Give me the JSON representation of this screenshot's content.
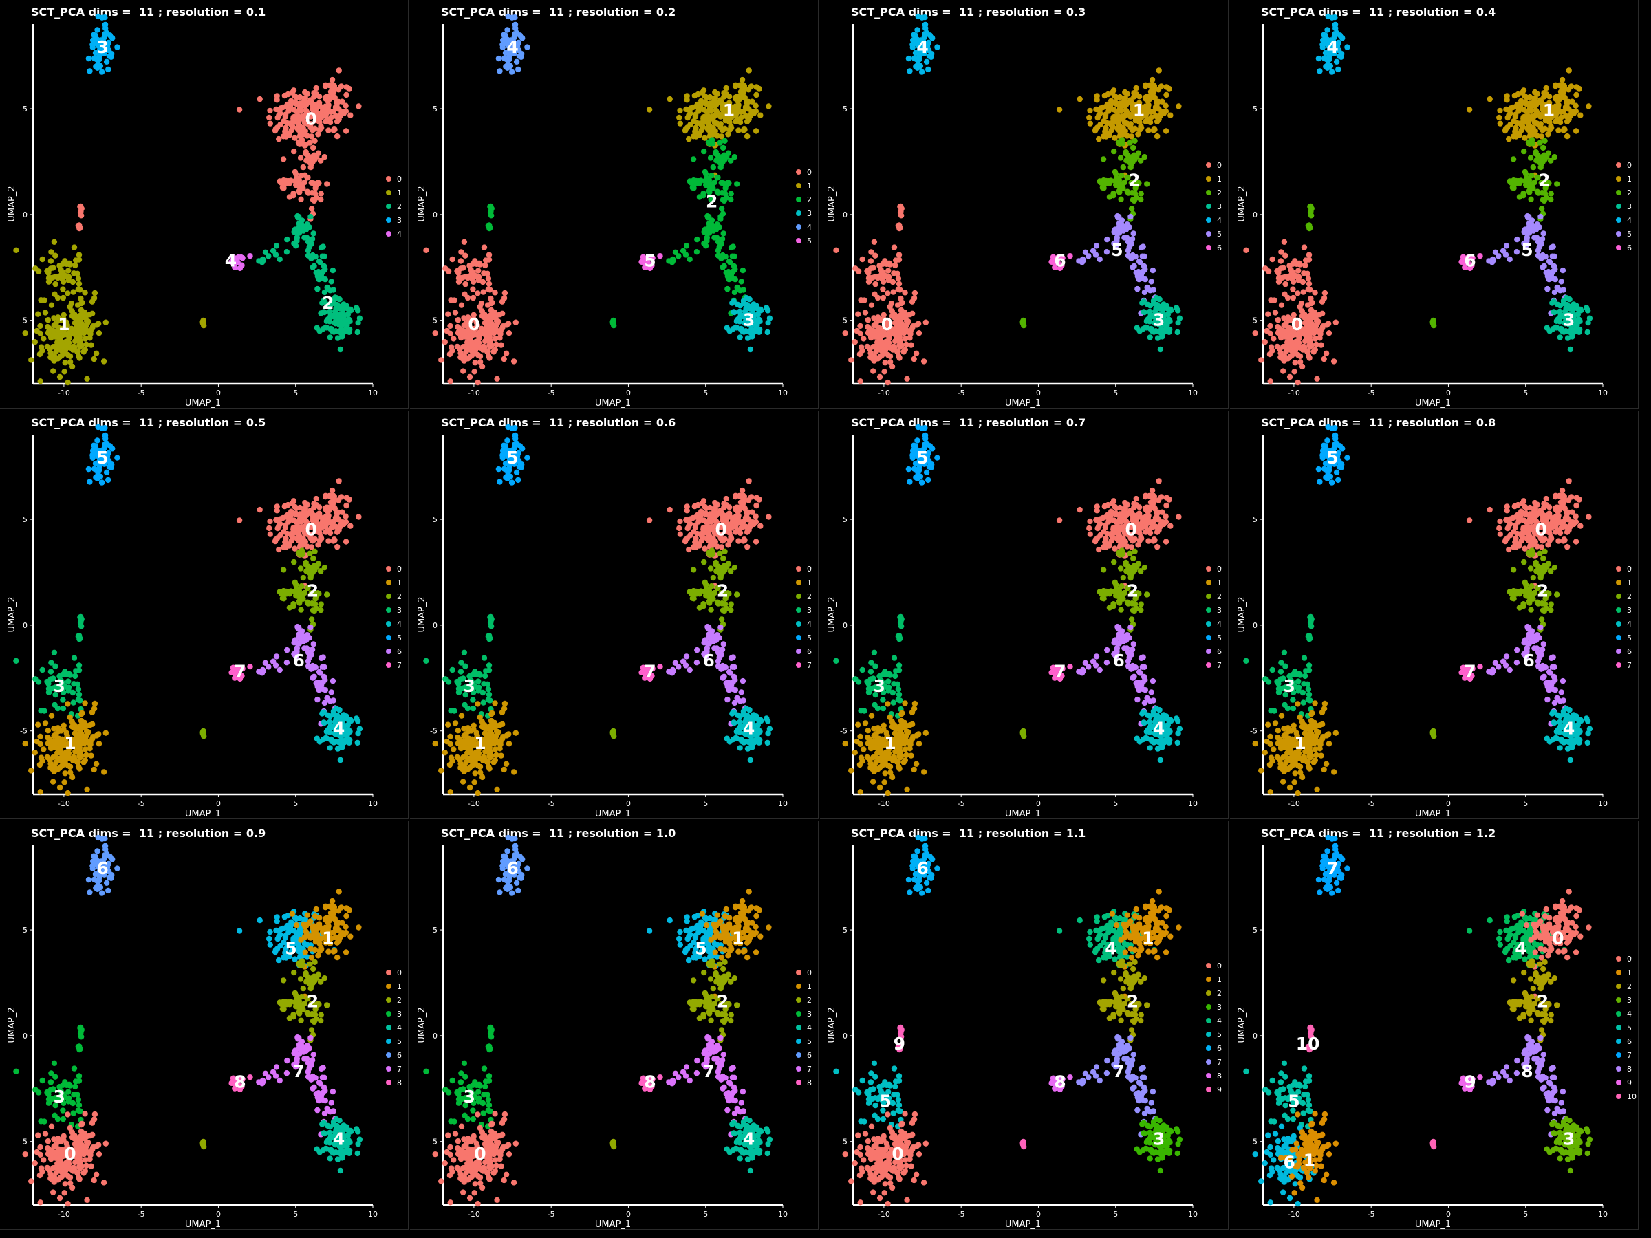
{
  "chart_data": [
    {
      "type": "scatter",
      "title": "SCT_PCA dims =  11 ; resolution = 0.1",
      "xlabel": "UMAP_1",
      "ylabel": "UMAP_2",
      "xlim": [
        -12,
        10
      ],
      "ylim": [
        -8,
        9
      ],
      "xticks": [
        -10,
        -5,
        0,
        5,
        10
      ],
      "yticks": [
        -5,
        0,
        5
      ],
      "legend": [
        "0",
        "1",
        "2",
        "3",
        "4"
      ],
      "colors": [
        "#F8766D",
        "#A3A500",
        "#00BF7D",
        "#00B0F6",
        "#E76BF3"
      ],
      "regions": {
        "up": 0,
        "mid": 0,
        "lowerleft": 1,
        "lowerleft_top": 1,
        "stalk": 0,
        "bottomright": 2,
        "path": 2,
        "small": 4,
        "top": 3,
        "tiny": 1
      },
      "labels": [
        {
          "text": "0",
          "x": 6,
          "y": 4.5
        },
        {
          "text": "1",
          "x": -10,
          "y": -5.2
        },
        {
          "text": "2",
          "x": 7.1,
          "y": -4.2
        },
        {
          "text": "3",
          "x": -7.5,
          "y": 7.9
        },
        {
          "text": "4",
          "x": 0.8,
          "y": -2.2
        }
      ]
    },
    {
      "type": "scatter",
      "title": "SCT_PCA dims =  11 ; resolution = 0.2",
      "xlabel": "UMAP_1",
      "ylabel": "UMAP_2",
      "xlim": [
        -12,
        10
      ],
      "ylim": [
        -8,
        9
      ],
      "xticks": [
        -10,
        -5,
        0,
        5,
        10
      ],
      "yticks": [
        -5,
        0,
        5
      ],
      "legend": [
        "0",
        "1",
        "2",
        "3",
        "4",
        "5"
      ],
      "colors": [
        "#F8766D",
        "#B79F00",
        "#00BA38",
        "#00BFC4",
        "#619CFF",
        "#F564E3"
      ],
      "regions": {
        "up": 1,
        "mid": 2,
        "lowerleft": 0,
        "lowerleft_top": 0,
        "stalk": 2,
        "bottomright": 3,
        "path": 2,
        "small": 5,
        "top": 4,
        "tiny": 2
      },
      "labels": [
        {
          "text": "1",
          "x": 6.5,
          "y": 4.9
        },
        {
          "text": "2",
          "x": 5.4,
          "y": 0.6
        },
        {
          "text": "0",
          "x": -10,
          "y": -5.2
        },
        {
          "text": "3",
          "x": 7.8,
          "y": -5
        },
        {
          "text": "4",
          "x": -7.5,
          "y": 7.9
        },
        {
          "text": "5",
          "x": 1.4,
          "y": -2.2
        }
      ]
    },
    {
      "type": "scatter",
      "title": "SCT_PCA dims =  11 ; resolution = 0.3",
      "xlabel": "UMAP_1",
      "ylabel": "UMAP_2",
      "xlim": [
        -12,
        10
      ],
      "ylim": [
        -8,
        9
      ],
      "xticks": [
        -10,
        -5,
        0,
        5,
        10
      ],
      "yticks": [
        -5,
        0,
        5
      ],
      "legend": [
        "0",
        "1",
        "2",
        "3",
        "4",
        "5",
        "6"
      ],
      "colors": [
        "#F8766D",
        "#C49A00",
        "#53B400",
        "#00C094",
        "#00B6EB",
        "#A58AFF",
        "#FB61D7"
      ],
      "regions": {
        "up": 1,
        "mid": 2,
        "lowerleft": 0,
        "lowerleft_top": 0,
        "stalk": 0,
        "bottomright": 3,
        "path": 5,
        "small": 6,
        "top": 4,
        "tiny": 2
      },
      "labels": [
        {
          "text": "1",
          "x": 6.5,
          "y": 4.9
        },
        {
          "text": "2",
          "x": 6.2,
          "y": 1.6
        },
        {
          "text": "5",
          "x": 5.1,
          "y": -1.7
        },
        {
          "text": "0",
          "x": -9.8,
          "y": -5.2
        },
        {
          "text": "3",
          "x": 7.8,
          "y": -5
        },
        {
          "text": "4",
          "x": -7.5,
          "y": 7.9
        },
        {
          "text": "6",
          "x": 1.4,
          "y": -2.2
        }
      ]
    },
    {
      "type": "scatter",
      "title": "SCT_PCA dims =  11 ; resolution = 0.4",
      "xlabel": "UMAP_1",
      "ylabel": "UMAP_2",
      "xlim": [
        -12,
        10
      ],
      "ylim": [
        -8,
        9
      ],
      "xticks": [
        -10,
        -5,
        0,
        5,
        10
      ],
      "yticks": [
        -5,
        0,
        5
      ],
      "legend": [
        "0",
        "1",
        "2",
        "3",
        "4",
        "5",
        "6"
      ],
      "colors": [
        "#F8766D",
        "#C49A00",
        "#53B400",
        "#00C094",
        "#00B6EB",
        "#A58AFF",
        "#FB61D7"
      ],
      "regions": {
        "up": 1,
        "mid": 2,
        "lowerleft": 0,
        "lowerleft_top": 0,
        "stalk": 2,
        "bottomright": 3,
        "path": 5,
        "small": 6,
        "top": 4,
        "tiny": 2
      },
      "labels": [
        {
          "text": "1",
          "x": 6.5,
          "y": 4.9
        },
        {
          "text": "2",
          "x": 6.2,
          "y": 1.6
        },
        {
          "text": "5",
          "x": 5.1,
          "y": -1.7
        },
        {
          "text": "0",
          "x": -9.8,
          "y": -5.2
        },
        {
          "text": "3",
          "x": 7.8,
          "y": -5
        },
        {
          "text": "4",
          "x": -7.5,
          "y": 7.9
        },
        {
          "text": "6",
          "x": 1.4,
          "y": -2.2
        }
      ]
    },
    {
      "type": "scatter",
      "title": "SCT_PCA dims =  11 ; resolution = 0.5",
      "xlabel": "UMAP_1",
      "ylabel": "UMAP_2",
      "xlim": [
        -12,
        10
      ],
      "ylim": [
        -8,
        9
      ],
      "xticks": [
        -10,
        -5,
        0,
        5,
        10
      ],
      "yticks": [
        -5,
        0,
        5
      ],
      "legend": [
        "0",
        "1",
        "2",
        "3",
        "4",
        "5",
        "6",
        "7"
      ],
      "colors": [
        "#F8766D",
        "#CD9600",
        "#7CAE00",
        "#00BE67",
        "#00BFC4",
        "#00A9FF",
        "#C77CFF",
        "#FF61CC"
      ],
      "regions": {
        "up": 0,
        "mid": 2,
        "lowerleft": 1,
        "lowerleft_top": 3,
        "stalk": 3,
        "bottomright": 4,
        "path": 6,
        "small": 7,
        "top": 5,
        "tiny": 2
      },
      "labels": [
        {
          "text": "0",
          "x": 6,
          "y": 4.5
        },
        {
          "text": "2",
          "x": 6.1,
          "y": 1.6
        },
        {
          "text": "6",
          "x": 5.2,
          "y": -1.7
        },
        {
          "text": "3",
          "x": -10.3,
          "y": -2.9
        },
        {
          "text": "1",
          "x": -9.6,
          "y": -5.6
        },
        {
          "text": "4",
          "x": 7.8,
          "y": -4.9
        },
        {
          "text": "5",
          "x": -7.5,
          "y": 7.9
        },
        {
          "text": "7",
          "x": 1.4,
          "y": -2.2
        }
      ]
    },
    {
      "type": "scatter",
      "title": "SCT_PCA dims =  11 ; resolution = 0.6",
      "xlabel": "UMAP_1",
      "ylabel": "UMAP_2",
      "xlim": [
        -12,
        10
      ],
      "ylim": [
        -8,
        9
      ],
      "xticks": [
        -10,
        -5,
        0,
        5,
        10
      ],
      "yticks": [
        -5,
        0,
        5
      ],
      "legend": [
        "0",
        "1",
        "2",
        "3",
        "4",
        "5",
        "6",
        "7"
      ],
      "colors": [
        "#F8766D",
        "#CD9600",
        "#7CAE00",
        "#00BE67",
        "#00BFC4",
        "#00A9FF",
        "#C77CFF",
        "#FF61CC"
      ],
      "regions": {
        "up": 0,
        "mid": 2,
        "lowerleft": 1,
        "lowerleft_top": 3,
        "stalk": 3,
        "bottomright": 4,
        "path": 6,
        "small": 7,
        "top": 5,
        "tiny": 2
      },
      "labels": [
        {
          "text": "0",
          "x": 6,
          "y": 4.5
        },
        {
          "text": "2",
          "x": 6.1,
          "y": 1.6
        },
        {
          "text": "6",
          "x": 5.2,
          "y": -1.7
        },
        {
          "text": "3",
          "x": -10.3,
          "y": -2.9
        },
        {
          "text": "1",
          "x": -9.6,
          "y": -5.6
        },
        {
          "text": "4",
          "x": 7.8,
          "y": -4.9
        },
        {
          "text": "5",
          "x": -7.5,
          "y": 7.9
        },
        {
          "text": "7",
          "x": 1.4,
          "y": -2.2
        }
      ]
    },
    {
      "type": "scatter",
      "title": "SCT_PCA dims =  11 ; resolution = 0.7",
      "xlabel": "UMAP_1",
      "ylabel": "UMAP_2",
      "xlim": [
        -12,
        10
      ],
      "ylim": [
        -8,
        9
      ],
      "xticks": [
        -10,
        -5,
        0,
        5,
        10
      ],
      "yticks": [
        -5,
        0,
        5
      ],
      "legend": [
        "0",
        "1",
        "2",
        "3",
        "4",
        "5",
        "6",
        "7"
      ],
      "colors": [
        "#F8766D",
        "#CD9600",
        "#7CAE00",
        "#00BE67",
        "#00BFC4",
        "#00A9FF",
        "#C77CFF",
        "#FF61CC"
      ],
      "regions": {
        "up": 0,
        "mid": 2,
        "lowerleft": 1,
        "lowerleft_top": 3,
        "stalk": 3,
        "bottomright": 4,
        "path": 6,
        "small": 7,
        "top": 5,
        "tiny": 2
      },
      "labels": [
        {
          "text": "0",
          "x": 6,
          "y": 4.5
        },
        {
          "text": "2",
          "x": 6.1,
          "y": 1.6
        },
        {
          "text": "6",
          "x": 5.2,
          "y": -1.7
        },
        {
          "text": "3",
          "x": -10.3,
          "y": -2.9
        },
        {
          "text": "1",
          "x": -9.6,
          "y": -5.6
        },
        {
          "text": "4",
          "x": 7.8,
          "y": -4.9
        },
        {
          "text": "5",
          "x": -7.5,
          "y": 7.9
        },
        {
          "text": "7",
          "x": 1.4,
          "y": -2.2
        }
      ]
    },
    {
      "type": "scatter",
      "title": "SCT_PCA dims =  11 ; resolution = 0.8",
      "xlabel": "UMAP_1",
      "ylabel": "UMAP_2",
      "xlim": [
        -12,
        10
      ],
      "ylim": [
        -8,
        9
      ],
      "xticks": [
        -10,
        -5,
        0,
        5,
        10
      ],
      "yticks": [
        -5,
        0,
        5
      ],
      "legend": [
        "0",
        "1",
        "2",
        "3",
        "4",
        "5",
        "6",
        "7"
      ],
      "colors": [
        "#F8766D",
        "#CD9600",
        "#7CAE00",
        "#00BE67",
        "#00BFC4",
        "#00A9FF",
        "#C77CFF",
        "#FF61CC"
      ],
      "regions": {
        "up": 0,
        "mid": 2,
        "lowerleft": 1,
        "lowerleft_top": 3,
        "stalk": 3,
        "bottomright": 4,
        "path": 6,
        "small": 7,
        "top": 5,
        "tiny": 2
      },
      "labels": [
        {
          "text": "0",
          "x": 6,
          "y": 4.5
        },
        {
          "text": "2",
          "x": 6.1,
          "y": 1.6
        },
        {
          "text": "6",
          "x": 5.2,
          "y": -1.7
        },
        {
          "text": "3",
          "x": -10.3,
          "y": -2.9
        },
        {
          "text": "1",
          "x": -9.6,
          "y": -5.6
        },
        {
          "text": "4",
          "x": 7.8,
          "y": -4.9
        },
        {
          "text": "5",
          "x": -7.5,
          "y": 7.9
        },
        {
          "text": "7",
          "x": 1.4,
          "y": -2.2
        }
      ]
    },
    {
      "type": "scatter",
      "title": "SCT_PCA dims =  11 ; resolution = 0.9",
      "xlabel": "UMAP_1",
      "ylabel": "UMAP_2",
      "xlim": [
        -12,
        10
      ],
      "ylim": [
        -8,
        9
      ],
      "xticks": [
        -10,
        -5,
        0,
        5,
        10
      ],
      "yticks": [
        -5,
        0,
        5
      ],
      "legend": [
        "0",
        "1",
        "2",
        "3",
        "4",
        "5",
        "6",
        "7",
        "8"
      ],
      "colors": [
        "#F8766D",
        "#D39200",
        "#93AA00",
        "#00BA38",
        "#00C19F",
        "#00B9E3",
        "#619CFF",
        "#DB72FB",
        "#FF61C3"
      ],
      "regions": {
        "upleft": 5,
        "upright": 1,
        "mid": 2,
        "lowerleft": 0,
        "lowerleft_top": 3,
        "stalk": 3,
        "bottomright": 4,
        "path": 7,
        "small": 8,
        "top": 6,
        "tiny": 2
      },
      "labels": [
        {
          "text": "5",
          "x": 4.7,
          "y": 4.1
        },
        {
          "text": "1",
          "x": 7.1,
          "y": 4.6
        },
        {
          "text": "2",
          "x": 6.1,
          "y": 1.6
        },
        {
          "text": "7",
          "x": 5.2,
          "y": -1.7
        },
        {
          "text": "3",
          "x": -10.3,
          "y": -2.9
        },
        {
          "text": "0",
          "x": -9.6,
          "y": -5.6
        },
        {
          "text": "4",
          "x": 7.8,
          "y": -4.9
        },
        {
          "text": "6",
          "x": -7.5,
          "y": 7.9
        },
        {
          "text": "8",
          "x": 1.4,
          "y": -2.2
        }
      ]
    },
    {
      "type": "scatter",
      "title": "SCT_PCA dims =  11 ; resolution = 1.0",
      "xlabel": "UMAP_1",
      "ylabel": "UMAP_2",
      "xlim": [
        -12,
        10
      ],
      "ylim": [
        -8,
        9
      ],
      "xticks": [
        -10,
        -5,
        0,
        5,
        10
      ],
      "yticks": [
        -5,
        0,
        5
      ],
      "legend": [
        "0",
        "1",
        "2",
        "3",
        "4",
        "5",
        "6",
        "7",
        "8"
      ],
      "colors": [
        "#F8766D",
        "#D39200",
        "#93AA00",
        "#00BA38",
        "#00C19F",
        "#00B9E3",
        "#619CFF",
        "#DB72FB",
        "#FF61C3"
      ],
      "regions": {
        "upleft": 5,
        "upright": 1,
        "mid": 2,
        "lowerleft": 0,
        "lowerleft_top": 3,
        "stalk": 3,
        "bottomright": 4,
        "path": 7,
        "small": 8,
        "top": 6,
        "tiny": 2
      },
      "labels": [
        {
          "text": "5",
          "x": 4.7,
          "y": 4.1
        },
        {
          "text": "1",
          "x": 7.1,
          "y": 4.6
        },
        {
          "text": "2",
          "x": 6.1,
          "y": 1.6
        },
        {
          "text": "7",
          "x": 5.2,
          "y": -1.7
        },
        {
          "text": "3",
          "x": -10.3,
          "y": -2.9
        },
        {
          "text": "0",
          "x": -9.6,
          "y": -5.6
        },
        {
          "text": "4",
          "x": 7.8,
          "y": -4.9
        },
        {
          "text": "6",
          "x": -7.5,
          "y": 7.9
        },
        {
          "text": "8",
          "x": 1.4,
          "y": -2.2
        }
      ]
    },
    {
      "type": "scatter",
      "title": "SCT_PCA dims =  11 ; resolution = 1.1",
      "xlabel": "UMAP_1",
      "ylabel": "UMAP_2",
      "xlim": [
        -12,
        10
      ],
      "ylim": [
        -8,
        9
      ],
      "xticks": [
        -10,
        -5,
        0,
        5,
        10
      ],
      "yticks": [
        -5,
        0,
        5
      ],
      "legend": [
        "0",
        "1",
        "2",
        "3",
        "4",
        "5",
        "6",
        "7",
        "8",
        "9"
      ],
      "colors": [
        "#F8766D",
        "#D89000",
        "#A3A500",
        "#39B600",
        "#00BF7D",
        "#00BFC4",
        "#00B0F6",
        "#9590FF",
        "#E76BF3",
        "#FF62BC"
      ],
      "regions": {
        "upleft": 4,
        "upright": 1,
        "mid": 2,
        "lowerleft": 0,
        "lowerleft_top": 5,
        "stalk": 9,
        "bottomright": 3,
        "path": 7,
        "small": 8,
        "top": 6,
        "tiny": 9
      },
      "labels": [
        {
          "text": "4",
          "x": 4.7,
          "y": 4.1
        },
        {
          "text": "1",
          "x": 7.1,
          "y": 4.6
        },
        {
          "text": "2",
          "x": 6.1,
          "y": 1.6
        },
        {
          "text": "7",
          "x": 5.2,
          "y": -1.7
        },
        {
          "text": "9",
          "x": -9,
          "y": -0.4
        },
        {
          "text": "5",
          "x": -9.9,
          "y": -3.1
        },
        {
          "text": "0",
          "x": -9.1,
          "y": -5.6
        },
        {
          "text": "3",
          "x": 7.8,
          "y": -4.9
        },
        {
          "text": "6",
          "x": -7.5,
          "y": 7.9
        },
        {
          "text": "8",
          "x": 1.4,
          "y": -2.2
        }
      ]
    },
    {
      "type": "scatter",
      "title": "SCT_PCA dims =  11 ; resolution = 1.2",
      "xlabel": "UMAP_1",
      "ylabel": "UMAP_2",
      "xlim": [
        -12,
        10
      ],
      "ylim": [
        -8,
        9
      ],
      "xticks": [
        -10,
        -5,
        0,
        5,
        10
      ],
      "yticks": [
        -5,
        0,
        5
      ],
      "legend": [
        "0",
        "1",
        "2",
        "3",
        "4",
        "5",
        "6",
        "7",
        "8",
        "9",
        "10"
      ],
      "colors": [
        "#F8766D",
        "#DB8E00",
        "#AEA200",
        "#64B200",
        "#00BD5C",
        "#00C1A7",
        "#00BADE",
        "#00A6FF",
        "#B385FF",
        "#EF67EB",
        "#FF63B6"
      ],
      "regions": {
        "upleft": 4,
        "upright": 0,
        "mid": 2,
        "ll_left": 6,
        "ll_right": 1,
        "lowerleft_top": 5,
        "stalk": 10,
        "bottomright": 3,
        "path": 8,
        "small": 9,
        "top": 7,
        "tiny": 10
      },
      "labels": [
        {
          "text": "4",
          "x": 4.7,
          "y": 4.1
        },
        {
          "text": "0",
          "x": 7.1,
          "y": 4.6
        },
        {
          "text": "2",
          "x": 6.1,
          "y": 1.6
        },
        {
          "text": "8",
          "x": 5.1,
          "y": -1.7
        },
        {
          "text": "10",
          "x": -9.1,
          "y": -0.4
        },
        {
          "text": "5",
          "x": -10,
          "y": -3.1
        },
        {
          "text": "6",
          "x": -10.3,
          "y": -6
        },
        {
          "text": "1",
          "x": -9,
          "y": -5.9
        },
        {
          "text": "3",
          "x": 7.8,
          "y": -4.9
        },
        {
          "text": "7",
          "x": -7.5,
          "y": 7.9
        },
        {
          "text": "9",
          "x": 1.4,
          "y": -2.2
        }
      ]
    }
  ]
}
